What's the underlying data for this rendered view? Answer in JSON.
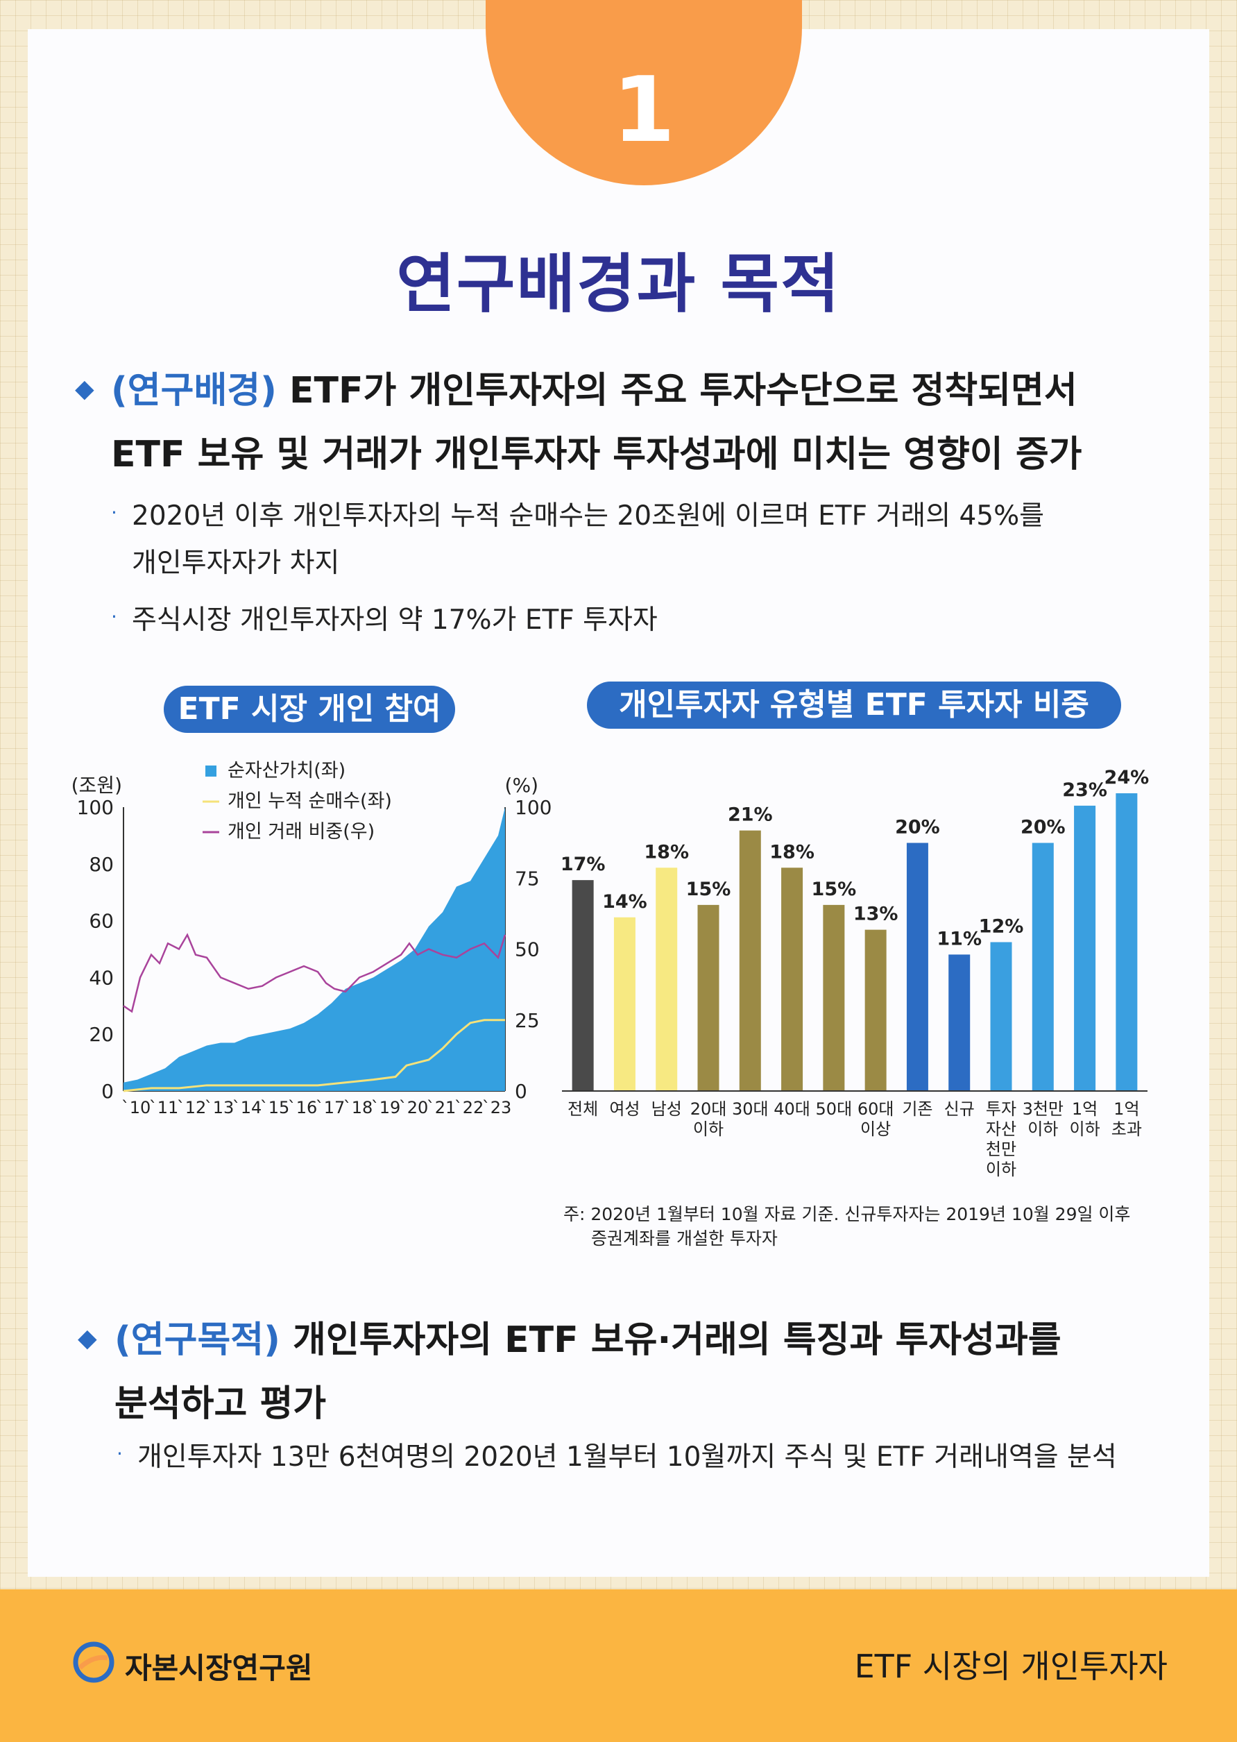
{
  "badge": {
    "number": "1"
  },
  "title": "연구배경과 목적",
  "background": {
    "tag": "(연구배경)",
    "line1": " ETF가 개인투자자의 주요 투자수단으로 정착되면서",
    "line2": "ETF 보유 및 거래가 개인투자자 투자성과에 미치는 영향이 증가",
    "bullets": [
      "2020년 이후 개인투자자의 누적 순매수는 20조원에 이르며 ETF 거래의 45%를",
      "개인투자자가 차지",
      "주식시장 개인투자자의 약 17%가 ETF 투자자"
    ]
  },
  "chart_left_title": "ETF 시장 개인 참여",
  "chart_right_title": "개인투자자 유형별 ETF 투자자 비중",
  "chart_data": [
    {
      "type": "area",
      "ylabel_left": "(조원)",
      "ylabel_right": "(%)",
      "ylim_left": [
        0,
        100
      ],
      "ylim_right": [
        0,
        100
      ],
      "yticks_left": [
        "0",
        "20",
        "40",
        "60",
        "80",
        "100"
      ],
      "yticks_right": [
        "0",
        "25",
        "50",
        "75",
        "100"
      ],
      "xticks": [
        "`10",
        "`11",
        "`12",
        "`13",
        "`14",
        "`15",
        "`16",
        "`17",
        "`18",
        "`19",
        "`20",
        "`21",
        "`22",
        "`23"
      ],
      "legend": [
        "순자산가치(좌)",
        "개인 누적 순매수(좌)",
        "개인 거래 비중(우)"
      ],
      "colors": {
        "nav": "#34a0e0",
        "net_buy": "#f5e27a",
        "share": "#a9439b"
      },
      "series": [
        {
          "name": "순자산가치(좌)",
          "axis": "left",
          "x": [
            2010,
            2010.5,
            2011,
            2011.5,
            2012,
            2012.5,
            2013,
            2013.5,
            2014,
            2014.5,
            2015,
            2015.5,
            2016,
            2016.5,
            2017,
            2017.5,
            2018,
            2018.5,
            2019,
            2019.5,
            2020,
            2020.5,
            2021,
            2021.5,
            2022,
            2022.5,
            2023,
            2023.5,
            2023.75
          ],
          "values": [
            3,
            4,
            6,
            8,
            12,
            14,
            16,
            17,
            17,
            19,
            20,
            21,
            22,
            24,
            27,
            31,
            36,
            38,
            40,
            43,
            46,
            50,
            58,
            63,
            72,
            74,
            82,
            90,
            100
          ]
        },
        {
          "name": "개인 누적 순매수(좌)",
          "axis": "left",
          "x": [
            2010,
            2011,
            2012,
            2013,
            2014,
            2015,
            2016,
            2017,
            2018,
            2019,
            2019.8,
            2020.2,
            2020.6,
            2021,
            2021.5,
            2022,
            2022.5,
            2023,
            2023.5,
            2023.75
          ],
          "values": [
            0,
            1,
            1,
            2,
            2,
            2,
            2,
            2,
            3,
            4,
            5,
            9,
            10,
            11,
            15,
            20,
            24,
            25,
            25,
            25
          ]
        },
        {
          "name": "개인 거래 비중(우)",
          "axis": "right",
          "x": [
            2010,
            2010.3,
            2010.6,
            2011,
            2011.3,
            2011.6,
            2012,
            2012.3,
            2012.6,
            2013,
            2013.5,
            2014,
            2014.5,
            2015,
            2015.5,
            2016,
            2016.5,
            2017,
            2017.3,
            2017.6,
            2018,
            2018.5,
            2019,
            2019.5,
            2020,
            2020.3,
            2020.6,
            2021,
            2021.5,
            2022,
            2022.5,
            2023,
            2023.5,
            2023.75
          ],
          "values": [
            30,
            28,
            40,
            48,
            45,
            52,
            50,
            55,
            48,
            47,
            40,
            38,
            36,
            37,
            40,
            42,
            44,
            42,
            38,
            36,
            35,
            40,
            42,
            45,
            48,
            52,
            48,
            50,
            48,
            47,
            50,
            52,
            47,
            55
          ]
        }
      ]
    },
    {
      "type": "bar",
      "categories": [
        "전체",
        "여성",
        "남성",
        "20대 이하",
        "30대",
        "40대",
        "50대",
        "60대 이상",
        "기존",
        "신규",
        "투자자산 천만 이하",
        "3천만 이하",
        "1억 이하",
        "1억 초과"
      ],
      "category_lines": [
        [
          "전체"
        ],
        [
          "여성"
        ],
        [
          "남성"
        ],
        [
          "20대",
          "이하"
        ],
        [
          "30대"
        ],
        [
          "40대"
        ],
        [
          "50대"
        ],
        [
          "60대",
          "이상"
        ],
        [
          "기존"
        ],
        [
          "신규"
        ],
        [
          "투자",
          "자산",
          "천만",
          "이하"
        ],
        [
          "3천만",
          "이하"
        ],
        [
          "1억",
          "이하"
        ],
        [
          "1억",
          "초과"
        ]
      ],
      "values": [
        17,
        14,
        18,
        15,
        21,
        18,
        15,
        13,
        20,
        11,
        12,
        20,
        23,
        24
      ],
      "labels": [
        "17%",
        "14%",
        "18%",
        "15%",
        "21%",
        "18%",
        "15%",
        "13%",
        "20%",
        "11%",
        "12%",
        "20%",
        "23%",
        "24%"
      ],
      "colors": [
        "#4a4a4a",
        "#f7e982",
        "#f7e982",
        "#9b8a45",
        "#9b8a45",
        "#9b8a45",
        "#9b8a45",
        "#9b8a45",
        "#2c6cc3",
        "#2c6cc3",
        "#3a9fe0",
        "#3a9fe0",
        "#3a9fe0",
        "#3a9fe0"
      ],
      "ylim": [
        0,
        24
      ]
    }
  ],
  "note": {
    "line1": "주: 2020년 1월부터 10월 자료 기준. 신규투자자는 2019년 10월 29일 이후",
    "line2": "증권계좌를 개설한 투자자"
  },
  "purpose": {
    "tag": "(연구목적)",
    "line1": " 개인투자자의 ETF 보유·거래의 특징과 투자성과를",
    "line2": "분석하고 평가",
    "bullet": "개인투자자 13만 6천여명의 2020년 1월부터 10월까지 주식 및 ETF 거래내역을 분석"
  },
  "footer": {
    "org": "자본시장연구원",
    "topic": "ETF 시장의 개인투자자"
  }
}
